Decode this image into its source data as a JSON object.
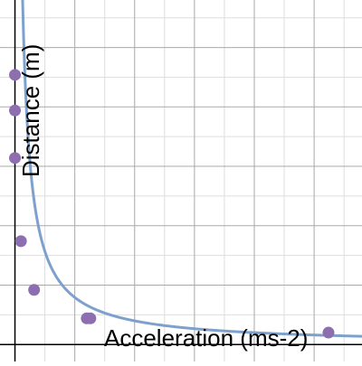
{
  "chart_data": {
    "type": "scatter",
    "xlabel": "Acceleration (ms-2)",
    "ylabel": "Distance (m)",
    "grid": true,
    "xlim": [
      -0.125,
      2.9
    ],
    "ylim": [
      -0.143,
      2.9
    ],
    "points": [
      {
        "x": 0.0,
        "y": 2.27
      },
      {
        "x": 0.0,
        "y": 1.97
      },
      {
        "x": 0.0,
        "y": 1.57
      },
      {
        "x": 0.05,
        "y": 0.87
      },
      {
        "x": 0.16,
        "y": 0.46
      },
      {
        "x": 0.6,
        "y": 0.22
      },
      {
        "x": 0.63,
        "y": 0.22
      },
      {
        "x": 2.62,
        "y": 0.1
      }
    ],
    "fit_curve": {
      "form": "y = a / (x + b)",
      "a": 0.2,
      "b": 0.005,
      "x_range": [
        0.0,
        2.9
      ]
    },
    "colors": {
      "points": "#8d6fb0",
      "curve": "#7da1cc",
      "grid_major": "#a9a9a9",
      "grid_minor": "#dedede",
      "axes": "#000000"
    }
  }
}
